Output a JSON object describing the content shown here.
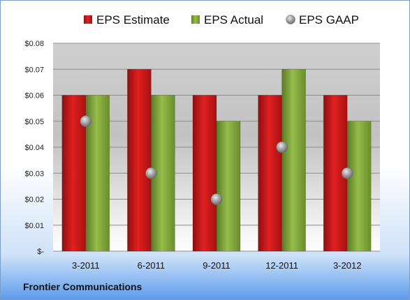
{
  "chart_data": {
    "type": "bar",
    "title": "",
    "xlabel": "",
    "ylabel": "",
    "categories": [
      "3-2011",
      "6-2011",
      "9-2011",
      "12-2011",
      "3-2012"
    ],
    "series": [
      {
        "name": "EPS Estimate",
        "type": "bar",
        "color": "#c81515",
        "values": [
          0.06,
          0.07,
          0.06,
          0.06,
          0.06
        ]
      },
      {
        "name": "EPS Actual",
        "type": "bar",
        "color": "#7fa33a",
        "values": [
          0.06,
          0.06,
          0.05,
          0.07,
          0.05
        ]
      },
      {
        "name": "EPS GAAP",
        "type": "scatter",
        "color": "#9a9a9a",
        "values": [
          0.05,
          0.03,
          0.02,
          0.04,
          0.03
        ]
      }
    ],
    "ylim": [
      0,
      0.08
    ],
    "yticks": [
      0,
      0.01,
      0.02,
      0.03,
      0.04,
      0.05,
      0.06,
      0.07,
      0.08
    ],
    "ytick_labels": [
      "$-",
      "$0.01",
      "$0.02",
      "$0.03",
      "$0.04",
      "$0.05",
      "$0.06",
      "$0.07",
      "$0.08"
    ],
    "grid": true,
    "legend_position": "top",
    "footer": "Frontier Communications"
  }
}
